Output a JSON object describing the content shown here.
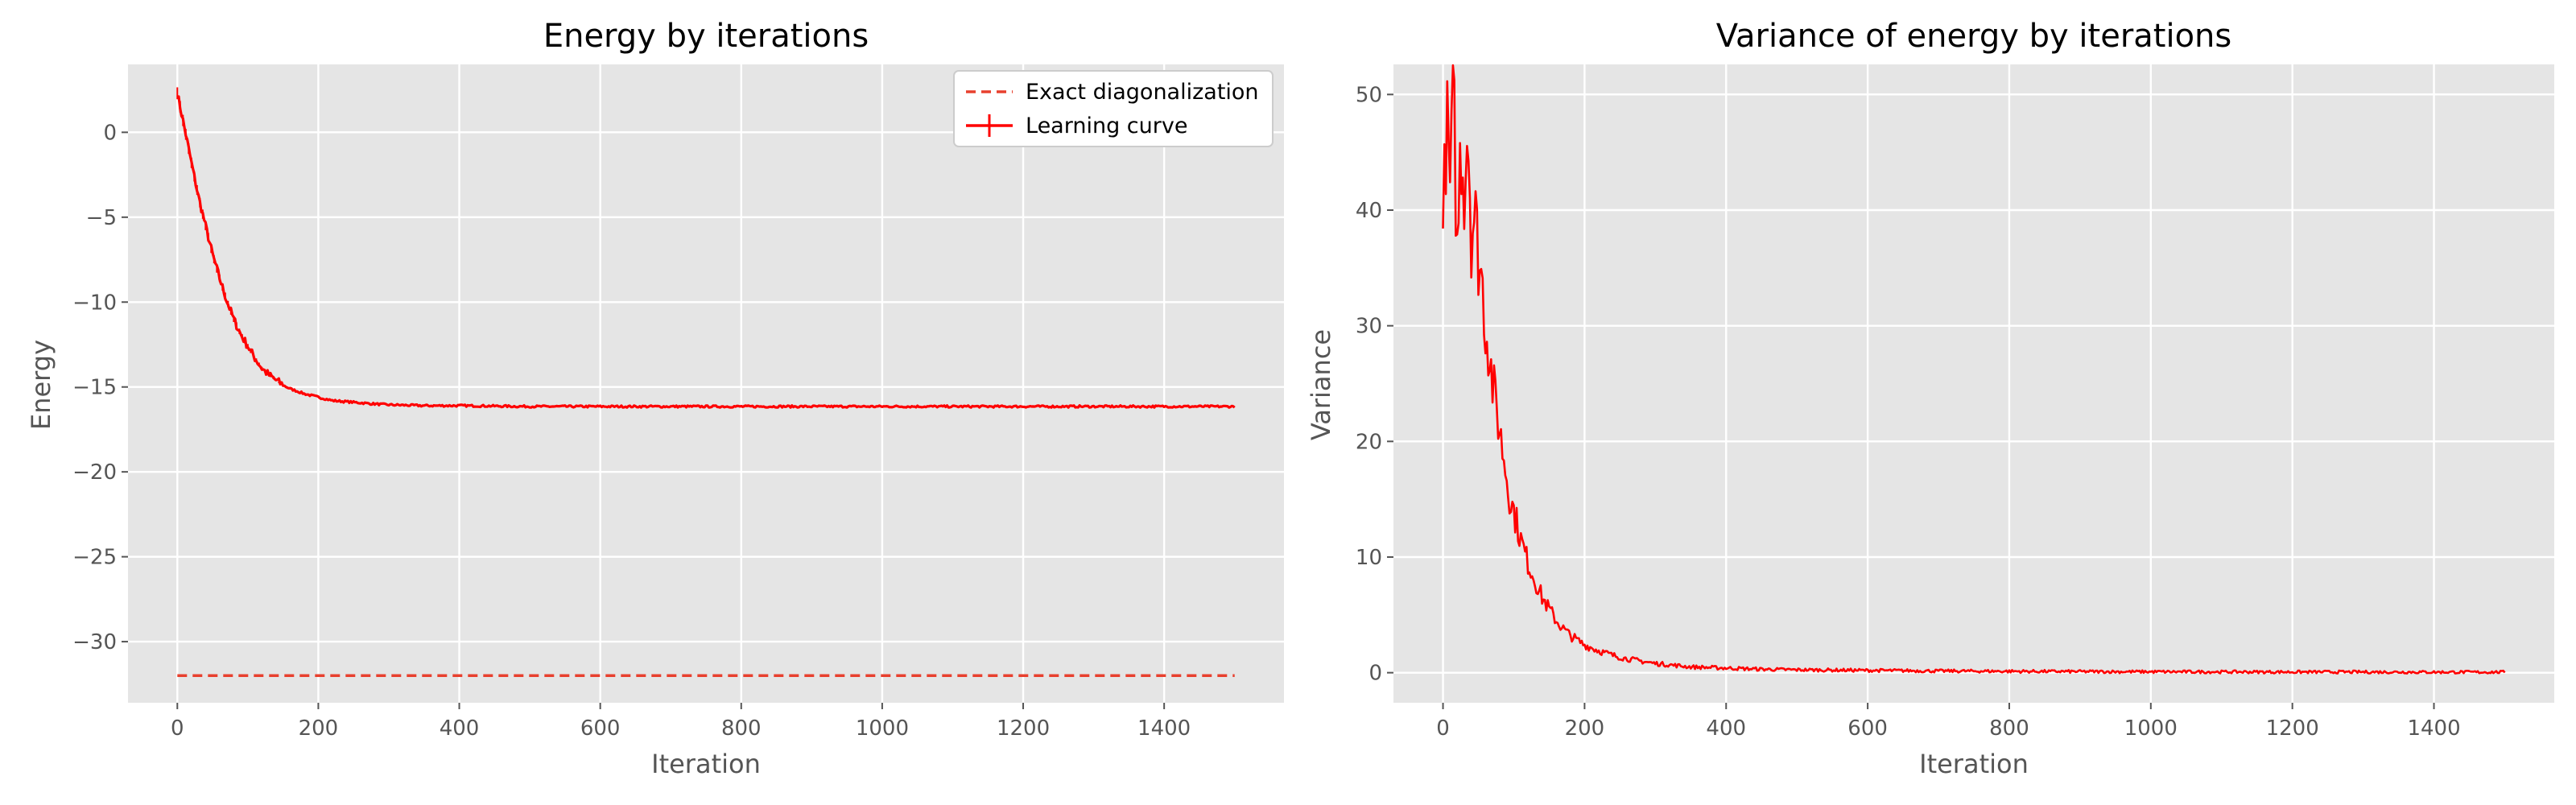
{
  "colors": {
    "background": "#e5e5e5",
    "grid": "#ffffff",
    "series": "#ff0000",
    "exact": "#e8402e",
    "tick": "#555555"
  },
  "chart_data": [
    {
      "type": "line",
      "title": "Energy by iterations",
      "xlabel": "Iteration",
      "ylabel": "Energy",
      "xlim": [
        -70,
        1570
      ],
      "ylim": [
        -33.6,
        4.0
      ],
      "xticks": [
        0,
        200,
        400,
        600,
        800,
        1000,
        1200,
        1400
      ],
      "yticks": [
        0,
        -5,
        -10,
        -15,
        -20,
        -25,
        -30
      ],
      "grid": true,
      "legend": "top-right",
      "series": [
        {
          "name": "Exact diagonalization",
          "style": "dashed",
          "x": [
            0,
            1500
          ],
          "y": [
            -32.0,
            -32.0
          ]
        },
        {
          "name": "Learning curve",
          "style": "solid-errorbar",
          "x": [
            0,
            10,
            20,
            30,
            40,
            50,
            60,
            70,
            80,
            90,
            100,
            110,
            120,
            130,
            140,
            150,
            160,
            180,
            200,
            220,
            250,
            280,
            300,
            350,
            400,
            500,
            600,
            700,
            800,
            900,
            1000,
            1100,
            1200,
            1300,
            1400,
            1500
          ],
          "y": [
            2.3,
            0.3,
            -1.8,
            -3.8,
            -5.5,
            -7.2,
            -8.6,
            -9.9,
            -11.0,
            -11.9,
            -12.6,
            -13.3,
            -13.9,
            -14.3,
            -14.6,
            -14.9,
            -15.1,
            -15.4,
            -15.6,
            -15.8,
            -15.9,
            -16.0,
            -16.05,
            -16.1,
            -16.1,
            -16.15,
            -16.15,
            -16.15,
            -16.15,
            -16.15,
            -16.15,
            -16.15,
            -16.15,
            -16.15,
            -16.15,
            -16.15
          ]
        }
      ]
    },
    {
      "type": "line",
      "title": "Variance of energy by iterations",
      "xlabel": "Iteration",
      "ylabel": "Variance",
      "xlim": [
        -70,
        1570
      ],
      "ylim": [
        -2.6,
        52.6
      ],
      "xticks": [
        0,
        200,
        400,
        600,
        800,
        1000,
        1200,
        1400
      ],
      "yticks": [
        0,
        10,
        20,
        30,
        40,
        50
      ],
      "grid": true,
      "series": [
        {
          "x": [
            0,
            5,
            10,
            15,
            20,
            25,
            30,
            35,
            40,
            45,
            50,
            55,
            60,
            65,
            70,
            75,
            80,
            85,
            90,
            95,
            100,
            110,
            120,
            130,
            140,
            150,
            160,
            170,
            180,
            190,
            200,
            220,
            240,
            260,
            280,
            300,
            350,
            400,
            450,
            500,
            600,
            700,
            800,
            900,
            1000,
            1100,
            1200,
            1300,
            1400,
            1500
          ],
          "y": [
            38,
            48,
            42,
            50,
            36,
            46,
            42,
            48,
            38,
            40,
            36,
            34,
            30,
            28,
            25,
            23,
            21,
            19,
            17,
            15,
            14,
            11.5,
            9.5,
            8.0,
            6.5,
            5.5,
            4.5,
            3.8,
            3.2,
            2.8,
            2.4,
            1.9,
            1.5,
            1.2,
            1.0,
            0.8,
            0.5,
            0.4,
            0.3,
            0.25,
            0.2,
            0.15,
            0.12,
            0.1,
            0.08,
            0.07,
            0.06,
            0.06,
            0.05,
            0.05
          ]
        }
      ]
    }
  ]
}
